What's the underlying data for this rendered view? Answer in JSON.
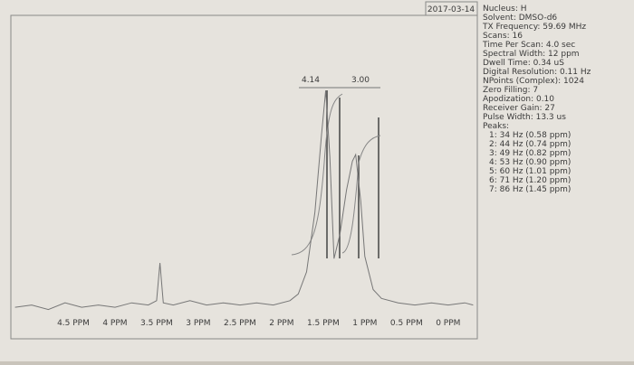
{
  "chart_data": {
    "type": "line",
    "date": "2017-03-14",
    "info": [
      "Nucleus: H",
      "Solvent: DMSO-d6",
      "TX Frequency: 59.69 MHz",
      "Scans: 16",
      "Time Per Scan: 4.0 sec",
      "Spectral Width: 12 ppm",
      "Dwell Time: 0.34 uS",
      "Digital Resolution: 0.11 Hz",
      "NPoints (Complex): 1024",
      "Zero Filling: 7",
      "Apodization: 0.10",
      "Receiver Gain: 27",
      "Pulse Width: 13.3 us",
      "Peaks:",
      "1: 34 Hz (0.58 ppm)",
      "2: 44 Hz (0.74 ppm)",
      "3: 49 Hz (0.82 ppm)",
      "4: 53 Hz (0.90 ppm)",
      "5: 60 Hz (1.01 ppm)",
      "6: 71 Hz (1.20 ppm)",
      "7: 86 Hz (1.45 ppm)"
    ],
    "annotations": [
      "4.14",
      "3.00"
    ],
    "x": [
      5.2,
      5.0,
      4.8,
      4.6,
      4.4,
      4.2,
      4.0,
      3.8,
      3.6,
      3.5,
      3.46,
      3.42,
      3.3,
      3.1,
      2.9,
      2.7,
      2.5,
      2.3,
      2.1,
      1.9,
      1.8,
      1.7,
      1.6,
      1.52,
      1.47,
      1.42,
      1.37,
      1.3,
      1.22,
      1.15,
      1.11,
      1.05,
      1.0,
      0.9,
      0.8,
      0.6,
      0.4,
      0.2,
      0.0,
      -0.2,
      -0.3
    ],
    "series": [
      {
        "color": "#777777",
        "values": [
          2,
          3,
          1,
          4,
          2,
          3,
          2,
          4,
          3,
          5,
          22,
          4,
          3,
          5,
          3,
          4,
          3,
          4,
          3,
          5,
          8,
          18,
          45,
          80,
          100,
          70,
          24,
          35,
          55,
          68,
          71,
          50,
          25,
          10,
          6,
          4,
          3,
          4,
          3,
          4,
          3
        ]
      }
    ],
    "xlim": [
      5.25,
      -0.35
    ],
    "ylim": [
      0,
      100
    ],
    "xticks": [
      {
        "value": 4.5,
        "label": "4.5 PPM"
      },
      {
        "value": 4,
        "label": "4 PPM"
      },
      {
        "value": 3.5,
        "label": "3.5 PPM"
      },
      {
        "value": 3,
        "label": "3 PPM"
      },
      {
        "value": 2.5,
        "label": "2.5 PPM"
      },
      {
        "value": 2,
        "label": "2 PPM"
      },
      {
        "value": 1.5,
        "label": "1.5 PPM"
      },
      {
        "value": 1,
        "label": "1 PPM"
      },
      {
        "value": 0.5,
        "label": "0.5 PPM"
      },
      {
        "value": 0,
        "label": "0 PPM"
      }
    ]
  }
}
